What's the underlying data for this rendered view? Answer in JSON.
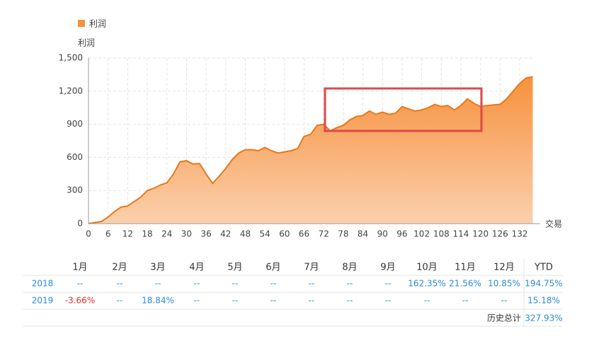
{
  "chart_data": {
    "type": "area",
    "legend": "利润",
    "y_label": "利润",
    "x_label": "交易",
    "color": "#f7913d",
    "x": [
      0,
      2,
      4,
      6,
      8,
      10,
      12,
      14,
      16,
      18,
      20,
      22,
      24,
      26,
      28,
      30,
      32,
      34,
      36,
      38,
      40,
      42,
      44,
      46,
      48,
      50,
      52,
      54,
      56,
      58,
      60,
      62,
      64,
      66,
      68,
      70,
      72,
      74,
      76,
      78,
      80,
      82,
      84,
      86,
      88,
      90,
      92,
      94,
      96,
      98,
      100,
      102,
      104,
      106,
      108,
      110,
      112,
      114,
      116,
      118,
      120,
      122,
      124,
      126,
      128,
      130,
      132,
      134,
      136
    ],
    "values": [
      0,
      10,
      20,
      60,
      110,
      150,
      160,
      200,
      240,
      300,
      320,
      350,
      370,
      450,
      560,
      570,
      540,
      545,
      450,
      365,
      430,
      500,
      580,
      640,
      670,
      670,
      660,
      690,
      660,
      640,
      650,
      660,
      680,
      790,
      810,
      890,
      900,
      840,
      870,
      890,
      940,
      970,
      980,
      1020,
      990,
      1010,
      990,
      1000,
      1060,
      1040,
      1020,
      1030,
      1050,
      1080,
      1060,
      1070,
      1030,
      1070,
      1130,
      1090,
      1060,
      1070,
      1075,
      1080,
      1130,
      1200,
      1270,
      1320,
      1330
    ],
    "xlim": [
      0,
      136
    ],
    "ylim": [
      0,
      1500
    ],
    "xticks": [
      0,
      6,
      12,
      18,
      24,
      30,
      36,
      42,
      48,
      54,
      60,
      66,
      72,
      78,
      84,
      90,
      96,
      102,
      108,
      114,
      120,
      126,
      132
    ],
    "yticks": [
      0,
      300,
      600,
      900,
      {
        "value": 1200,
        "label": "1,200"
      },
      {
        "value": 1500,
        "label": "1,500"
      }
    ],
    "grid": true
  },
  "table": {
    "header": [
      "1月",
      "2月",
      "3月",
      "4月",
      "5月",
      "6月",
      "7月",
      "8月",
      "9月",
      "10月",
      "11月",
      "12月",
      "YTD"
    ],
    "rows": [
      [
        "2018",
        "--",
        "--",
        "--",
        "--",
        "--",
        "--",
        "--",
        "--",
        "--",
        "162.35%",
        "21.56%",
        "10.85%",
        "194.75%"
      ],
      [
        "2019",
        "-3.66%",
        "--",
        "18.84%",
        "--",
        "--",
        "--",
        "--",
        "--",
        "--",
        "--",
        "--",
        "--",
        "15.18%"
      ]
    ],
    "footer": [
      "历史总计",
      "327.93%"
    ]
  }
}
